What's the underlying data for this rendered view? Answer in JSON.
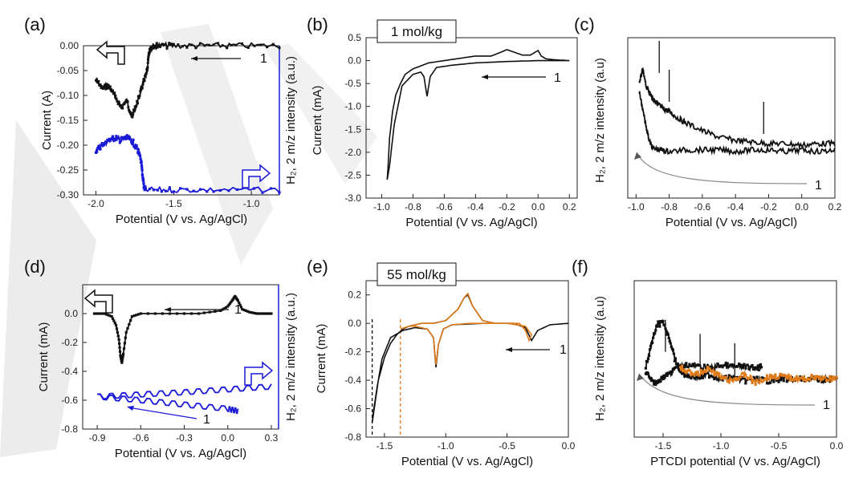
{
  "figure": {
    "watermark": "WIL",
    "colors": {
      "black": "#111111",
      "blue": "#1a1ad6",
      "orange": "#e07b1a",
      "grey": "#777777",
      "watermark": "#d9d9d9"
    }
  },
  "chart_data": [
    {
      "id": "a",
      "panel_label": "(a)",
      "type": "line",
      "xlabel": "Potential (V vs. Ag/AgCl)",
      "ylabel": "Current (A)",
      "ylabel_right": "H₂, 2 m/z intensity (a.u.)",
      "xlim": [
        -2.08,
        -0.82
      ],
      "ylim": [
        -0.3,
        0.0
      ],
      "xticks": [
        -2.0,
        -1.5,
        -1.0
      ],
      "xtick_labels": [
        "-2.0",
        "-1.5",
        "-1.0"
      ],
      "yticks": [
        0.0,
        -0.05,
        -0.1,
        -0.15,
        -0.2,
        -0.25,
        -0.3
      ],
      "ytick_labels": [
        "0.00",
        "-0.05",
        "-0.10",
        "-0.15",
        "-0.20",
        "-0.25",
        "-0.30"
      ],
      "annotation": "1",
      "series": [
        {
          "name": "current",
          "color": "#111111",
          "style": "noisy",
          "x": [
            -2.0,
            -1.96,
            -1.92,
            -1.88,
            -1.84,
            -1.8,
            -1.77,
            -1.74,
            -1.71,
            -1.69,
            -1.67,
            -1.66,
            -1.65,
            -1.63,
            -1.6,
            -1.5,
            -1.3,
            -1.1,
            -0.82
          ],
          "y": [
            -0.07,
            -0.085,
            -0.08,
            -0.1,
            -0.125,
            -0.11,
            -0.145,
            -0.12,
            -0.09,
            -0.07,
            -0.05,
            -0.02,
            -0.005,
            0.0,
            0.0,
            0.0,
            0.0,
            0.0,
            0.0
          ]
        },
        {
          "name": "H2 intensity",
          "color": "#1a1ad6",
          "style": "noisy-markers",
          "axis": "right",
          "x": [
            -2.0,
            -1.96,
            -1.92,
            -1.88,
            -1.84,
            -1.8,
            -1.76,
            -1.73,
            -1.71,
            -1.7,
            -1.69,
            -1.68,
            -1.5,
            -1.2,
            -0.82
          ],
          "y": [
            -0.21,
            -0.2,
            -0.19,
            -0.185,
            -0.19,
            -0.185,
            -0.195,
            -0.21,
            -0.23,
            -0.26,
            -0.285,
            -0.29,
            -0.29,
            -0.29,
            -0.29
          ]
        }
      ]
    },
    {
      "id": "b",
      "panel_label": "(b)",
      "type": "line",
      "xlabel": "Potential (V vs. Ag/AgCl)",
      "ylabel": "Current (mA)",
      "xlim": [
        -1.1,
        0.25
      ],
      "ylim": [
        -3.0,
        0.5
      ],
      "xticks": [
        -1.0,
        -0.8,
        -0.6,
        -0.4,
        -0.2,
        0.0,
        0.2
      ],
      "xtick_labels": [
        "-1.0",
        "-0.8",
        "-0.6",
        "-0.4",
        "-0.2",
        "0.0",
        "0.2"
      ],
      "yticks": [
        0.5,
        0.0,
        -0.5,
        -1.0,
        -1.5,
        -2.0,
        -2.5,
        -3.0
      ],
      "ytick_labels": [
        "0.5",
        "0.0",
        "-0.5",
        "-1.0",
        "-1.5",
        "-2.0",
        "-2.5",
        "-3.0"
      ],
      "concentration": "1 mol/kg",
      "annotation": "1",
      "series": [
        {
          "name": "CV",
          "color": "#111111",
          "style": "line",
          "x": [
            0.2,
            0.1,
            0.0,
            -0.2,
            -0.4,
            -0.55,
            -0.65,
            -0.69,
            -0.71,
            -0.73,
            -0.75,
            -0.8,
            -0.87,
            -0.92,
            -0.95,
            -0.965,
            -0.96,
            -0.95,
            -0.93,
            -0.91,
            -0.88,
            -0.85,
            -0.8,
            -0.7,
            -0.6,
            -0.5,
            -0.4,
            -0.3,
            -0.24,
            -0.2,
            -0.15,
            -0.1,
            -0.05,
            0.0,
            0.02,
            0.05,
            0.1,
            0.2
          ],
          "y": [
            0.0,
            0.0,
            0.0,
            -0.02,
            -0.05,
            -0.1,
            -0.15,
            -0.35,
            -0.78,
            -0.35,
            -0.25,
            -0.3,
            -0.55,
            -1.4,
            -2.3,
            -2.6,
            -2.35,
            -1.7,
            -1.1,
            -0.75,
            -0.5,
            -0.3,
            -0.18,
            -0.05,
            0.0,
            0.05,
            0.1,
            0.1,
            0.18,
            0.24,
            0.18,
            0.12,
            0.12,
            0.22,
            0.1,
            0.04,
            0.02,
            0.0
          ]
        }
      ]
    },
    {
      "id": "c",
      "panel_label": "(c)",
      "type": "line",
      "xlabel": "Potential (V vs. Ag/AgCl)",
      "ylabel": "H₂, 2 m/z intensity (a.u)",
      "xlim": [
        -1.05,
        0.2
      ],
      "ylim": [
        0,
        1
      ],
      "xticks": [
        -1.0,
        -0.8,
        -0.6,
        -0.4,
        -0.2,
        0.0,
        0.2
      ],
      "xtick_labels": [
        "-1.0",
        "-0.8",
        "-0.6",
        "-0.4",
        "-0.2",
        "0.0",
        "0.2"
      ],
      "annotation": "1",
      "series": [
        {
          "name": "upper",
          "color": "#111111",
          "style": "noisy",
          "x": [
            -0.98,
            -0.96,
            -0.94,
            -0.92,
            -0.9,
            -0.88,
            -0.86,
            -0.84,
            -0.8,
            -0.75,
            -0.7,
            -0.6,
            -0.5,
            -0.4,
            -0.3,
            -0.2,
            -0.1,
            0.0,
            0.1,
            0.2
          ],
          "y": [
            0.72,
            0.8,
            0.7,
            0.66,
            0.62,
            0.6,
            0.58,
            0.56,
            0.54,
            0.5,
            0.47,
            0.42,
            0.38,
            0.36,
            0.35,
            0.34,
            0.34,
            0.33,
            0.34,
            0.34
          ]
        },
        {
          "name": "lower",
          "color": "#111111",
          "style": "noisy",
          "x": [
            -0.98,
            -0.96,
            -0.94,
            -0.92,
            -0.9,
            -0.85,
            -0.8,
            -0.7,
            -0.6,
            -0.5,
            -0.4,
            -0.3,
            -0.2,
            -0.1,
            0.0,
            0.1,
            0.2
          ],
          "y": [
            0.66,
            0.55,
            0.45,
            0.36,
            0.31,
            0.3,
            0.29,
            0.3,
            0.3,
            0.3,
            0.29,
            0.3,
            0.3,
            0.29,
            0.3,
            0.29,
            0.3
          ]
        }
      ],
      "spikes": [
        {
          "x": -0.86,
          "y": 0.98
        },
        {
          "x": -0.8,
          "y": 0.8
        },
        {
          "x": -0.23,
          "y": 0.6
        }
      ]
    },
    {
      "id": "d",
      "panel_label": "(d)",
      "type": "line",
      "xlabel": "Potential (V vs. Ag/AgCl)",
      "ylabel": "Current (mA)",
      "ylabel_right": "H₂, 2 m/z intensity (a.u.)",
      "xlim": [
        -1.0,
        0.35
      ],
      "ylim": [
        -0.8,
        0.2
      ],
      "xticks": [
        -0.9,
        -0.6,
        -0.3,
        0.0,
        0.3
      ],
      "xtick_labels": [
        "-0.9",
        "-0.6",
        "-0.3",
        "0.0",
        "0.3"
      ],
      "yticks": [
        0.0,
        -0.2,
        -0.4,
        -0.6,
        -0.8
      ],
      "ytick_labels": [
        "0.0",
        "-0.2",
        "-0.4",
        "-0.6",
        "-0.8"
      ],
      "annotation": "1",
      "series": [
        {
          "name": "CV",
          "color": "#111111",
          "style": "markers",
          "x": [
            -0.92,
            -0.85,
            -0.8,
            -0.77,
            -0.75,
            -0.74,
            -0.73,
            -0.72,
            -0.7,
            -0.66,
            -0.6,
            -0.4,
            -0.2,
            -0.05,
            0.0,
            0.03,
            0.05,
            0.07,
            0.1,
            0.15,
            0.2,
            0.25,
            0.3
          ],
          "y": [
            0.0,
            0.0,
            -0.02,
            -0.08,
            -0.18,
            -0.29,
            -0.34,
            -0.28,
            -0.13,
            -0.02,
            0.0,
            0.0,
            0.0,
            0.02,
            0.05,
            0.09,
            0.12,
            0.09,
            0.03,
            0.01,
            0.0,
            0.0,
            0.0
          ]
        },
        {
          "name": "H2 forward",
          "color": "#1a1ad6",
          "style": "zigzag",
          "x": [
            -0.9,
            -0.6,
            -0.3,
            0.0,
            0.3
          ],
          "y": [
            -0.575,
            -0.56,
            -0.545,
            -0.525,
            -0.505
          ]
        },
        {
          "name": "H2 return",
          "color": "#1a1ad6",
          "style": "zigzag",
          "x": [
            -0.9,
            -0.6,
            -0.3,
            0.0,
            0.07
          ],
          "y": [
            -0.575,
            -0.6,
            -0.63,
            -0.66,
            -0.675
          ]
        }
      ]
    },
    {
      "id": "e",
      "panel_label": "(e)",
      "type": "line",
      "xlabel": "Potential (V vs. Ag/AgCl)",
      "ylabel": "Current (mA)",
      "xlim": [
        -1.65,
        0.0
      ],
      "ylim": [
        -0.8,
        0.3
      ],
      "xticks": [
        -1.5,
        -1.0,
        -0.5,
        0.0
      ],
      "xtick_labels": [
        "-1.5",
        "-1.0",
        "-0.5",
        "0.0"
      ],
      "yticks": [
        0.2,
        0.0,
        -0.2,
        -0.4,
        -0.6,
        -0.8
      ],
      "ytick_labels": [
        "0.2",
        "0.0",
        "-0.2",
        "-0.4",
        "-0.6",
        "-0.8"
      ],
      "concentration": "55 mol/kg",
      "annotation": "1",
      "vlines": [
        {
          "x": -1.6,
          "color": "#111111"
        },
        {
          "x": -1.37,
          "color": "#e07b1a"
        }
      ],
      "series": [
        {
          "name": "full window",
          "color": "#111111",
          "style": "line",
          "x": [
            0.0,
            -0.15,
            -0.25,
            -0.3,
            -0.35,
            -0.45,
            -0.7,
            -0.95,
            -1.02,
            -1.06,
            -1.08,
            -1.1,
            -1.15,
            -1.25,
            -1.35,
            -1.45,
            -1.52,
            -1.56,
            -1.59,
            -1.6,
            -1.58,
            -1.55,
            -1.5,
            -1.45,
            -1.4,
            -1.35,
            -1.3,
            -1.2,
            -1.1,
            -1.0,
            -0.9,
            -0.85,
            -0.82,
            -0.78,
            -0.7,
            -0.6
          ],
          "y": [
            0.0,
            -0.01,
            -0.05,
            -0.12,
            -0.03,
            0.0,
            0.0,
            -0.01,
            -0.04,
            -0.15,
            -0.31,
            -0.1,
            -0.04,
            -0.03,
            -0.05,
            -0.1,
            -0.25,
            -0.45,
            -0.62,
            -0.7,
            -0.58,
            -0.4,
            -0.24,
            -0.14,
            -0.08,
            -0.04,
            -0.02,
            0.0,
            0.0,
            0.02,
            0.1,
            0.18,
            0.2,
            0.12,
            0.02,
            0.0
          ]
        },
        {
          "name": "narrow window",
          "color": "#e07b1a",
          "style": "line",
          "x": [
            -0.5,
            -0.4,
            -0.35,
            -0.32,
            -0.3,
            -0.35,
            -0.5,
            -0.8,
            -0.95,
            -1.02,
            -1.06,
            -1.08,
            -1.1,
            -1.15,
            -1.25,
            -1.3,
            -1.37,
            -1.3,
            -1.2,
            -1.1,
            -1.0,
            -0.9,
            -0.85,
            -0.82,
            -0.78,
            -0.7,
            -0.6
          ],
          "y": [
            0.0,
            0.0,
            -0.05,
            -0.12,
            -0.08,
            -0.02,
            0.0,
            0.0,
            -0.01,
            -0.04,
            -0.15,
            -0.29,
            -0.1,
            -0.04,
            -0.02,
            -0.02,
            -0.04,
            -0.02,
            0.0,
            0.0,
            0.02,
            0.1,
            0.18,
            0.21,
            0.12,
            0.02,
            0.0
          ]
        }
      ]
    },
    {
      "id": "f",
      "panel_label": "(f)",
      "type": "line",
      "xlabel": "PTCDI potential (V vs. Ag/AgCl)",
      "ylabel": "H₂, 2 m/z intensity (a.u)",
      "xlim": [
        -1.75,
        0.0
      ],
      "ylim": [
        0,
        1
      ],
      "xticks": [
        -1.5,
        -1.0,
        -0.5,
        0.0
      ],
      "xtick_labels": [
        "-1.5",
        "-1.0",
        "-0.5",
        "0.0"
      ],
      "annotation": "1",
      "series": [
        {
          "name": "full window",
          "color": "#111111",
          "style": "noisy-markers",
          "x": [
            -1.65,
            -1.6,
            -1.55,
            -1.5,
            -1.45,
            -1.4,
            -1.35,
            -1.3,
            -1.2,
            -1.1,
            -1.0,
            -0.9,
            -0.8,
            -0.7,
            -0.6,
            -0.5,
            -0.4,
            -0.3,
            -0.2,
            -0.1,
            0.0
          ],
          "y": [
            0.45,
            0.6,
            0.72,
            0.73,
            0.65,
            0.5,
            0.42,
            0.4,
            0.38,
            0.4,
            0.37,
            0.38,
            0.36,
            0.37,
            0.36,
            0.37,
            0.37,
            0.37,
            0.37,
            0.37,
            0.37
          ]
        },
        {
          "name": "full window return",
          "color": "#111111",
          "style": "noisy-markers",
          "x": [
            -1.65,
            -1.6,
            -1.55,
            -1.5,
            -1.45,
            -1.4,
            -1.3,
            -1.2,
            -1.1,
            -1.0,
            -0.9,
            -0.8,
            -0.7,
            -0.65
          ],
          "y": [
            0.42,
            0.36,
            0.35,
            0.38,
            0.4,
            0.44,
            0.46,
            0.45,
            0.44,
            0.46,
            0.45,
            0.45,
            0.44,
            0.45
          ]
        },
        {
          "name": "narrow window",
          "color": "#e07b1a",
          "style": "noisy-markers",
          "x": [
            -1.35,
            -1.3,
            -1.2,
            -1.1,
            -1.0,
            -0.9,
            -0.8,
            -0.7,
            -0.6,
            -0.5,
            -0.4,
            -0.3,
            -0.2,
            -0.1,
            0.0
          ],
          "y": [
            0.45,
            0.42,
            0.4,
            0.44,
            0.38,
            0.36,
            0.4,
            0.35,
            0.38,
            0.39,
            0.38,
            0.37,
            0.38,
            0.37,
            0.38
          ]
        }
      ],
      "spikes": [
        {
          "x": -1.48,
          "y": 0.75
        },
        {
          "x": -1.18,
          "y": 0.66
        },
        {
          "x": -0.88,
          "y": 0.6
        }
      ]
    }
  ]
}
